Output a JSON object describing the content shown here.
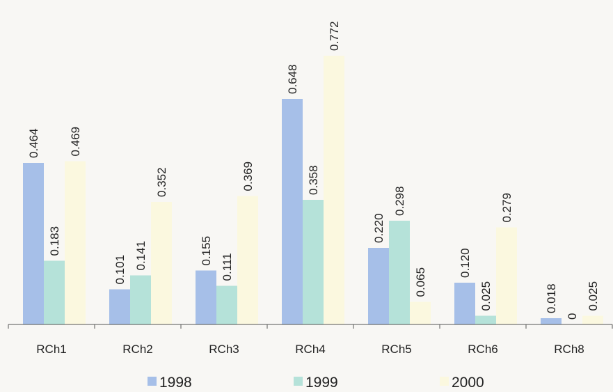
{
  "chart_data": {
    "type": "bar",
    "categories": [
      "RCh1",
      "RCh2",
      "RCh3",
      "RCh4",
      "RCh5",
      "RCh6",
      "RCh8"
    ],
    "series": [
      {
        "name": "1998",
        "color": "#a6bfe8",
        "values": [
          0.464,
          0.101,
          0.155,
          0.648,
          0.22,
          0.12,
          0.018
        ],
        "labels": [
          "0.464",
          "0.101",
          "0.155",
          "0.648",
          "0.220",
          "0.120",
          "0.018"
        ]
      },
      {
        "name": "1999",
        "color": "#b5e2d9",
        "values": [
          0.183,
          0.141,
          0.111,
          0.358,
          0.298,
          0.025,
          0
        ],
        "labels": [
          "0.183",
          "0.141",
          "0.111",
          "0.358",
          "0.298",
          "0.025",
          "0"
        ]
      },
      {
        "name": "2000",
        "color": "#fbf8df",
        "values": [
          0.469,
          0.352,
          0.369,
          0.772,
          0.065,
          0.279,
          0.025
        ],
        "labels": [
          "0.469",
          "0.352",
          "0.369",
          "0.772",
          "0.065",
          "0.279",
          "0.025"
        ]
      }
    ],
    "ylim": [
      0,
      0.8
    ],
    "grid": false,
    "legend": "bottom",
    "axis_color": "#555555"
  }
}
